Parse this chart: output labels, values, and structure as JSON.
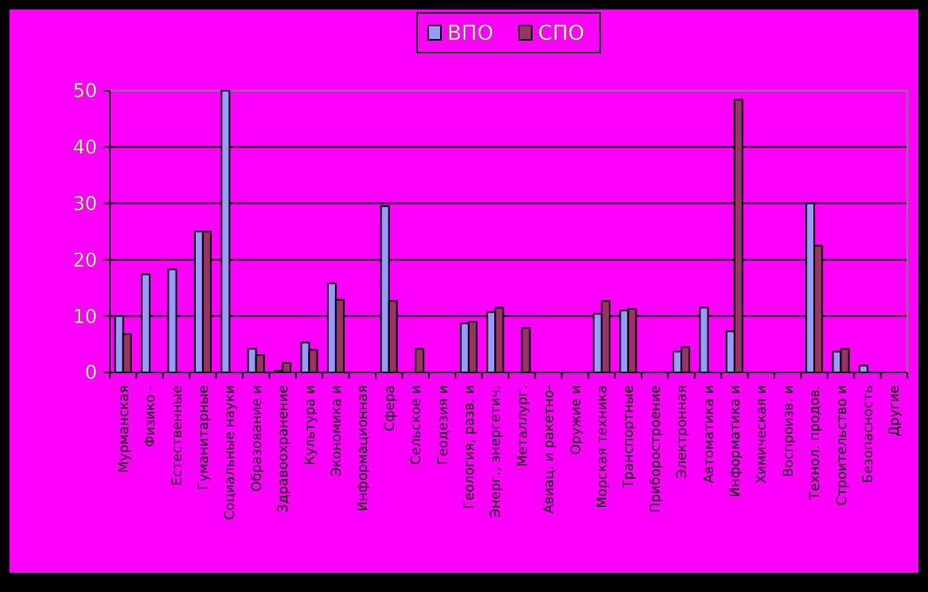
{
  "chart_data": {
    "type": "bar",
    "categories": [
      "Мурманская",
      "Физико -",
      "Естественные",
      "Гуманитарные",
      "Социальные науки",
      "Образование и",
      "Здравоохранение",
      "Культура и",
      "Экономика и",
      "Информационная",
      "Сфера",
      "Сельское и",
      "Геодезия и",
      "Геология, разв. и",
      "Энерг., энергетич.",
      "Металлург.",
      "Авиац. и ракетно-",
      "Оружие и",
      "Морская техника",
      "Транспортные",
      "Приборостроение",
      "Электронная",
      "Автоматика и",
      "Информатика и",
      "Химическая и",
      "Воспроизв. и",
      "Технол. продов.",
      "Строительство и",
      "Безопасность",
      "Другие"
    ],
    "series": [
      {
        "name": "ВПО",
        "color": "#9999ff",
        "values": [
          10,
          17.4,
          18.3,
          25,
          50,
          4.2,
          0.3,
          5.3,
          15.8,
          null,
          29.5,
          null,
          null,
          8.7,
          10.7,
          null,
          null,
          null,
          10.4,
          11,
          null,
          3.7,
          11.5,
          7.3,
          null,
          null,
          30,
          3.7,
          1.2,
          null
        ]
      },
      {
        "name": "СПО",
        "color": "#993366",
        "values": [
          6.8,
          null,
          null,
          25,
          null,
          3.1,
          1.7,
          4,
          12.9,
          null,
          12.7,
          4.2,
          null,
          9,
          11.5,
          7.9,
          null,
          null,
          12.7,
          11.3,
          null,
          4.5,
          null,
          48.4,
          null,
          null,
          22.5,
          4.2,
          null,
          null
        ]
      }
    ],
    "ylim": [
      0,
      50
    ],
    "yticks": [
      0,
      10,
      20,
      30,
      40,
      50
    ],
    "grid": "y",
    "legend": "top"
  }
}
